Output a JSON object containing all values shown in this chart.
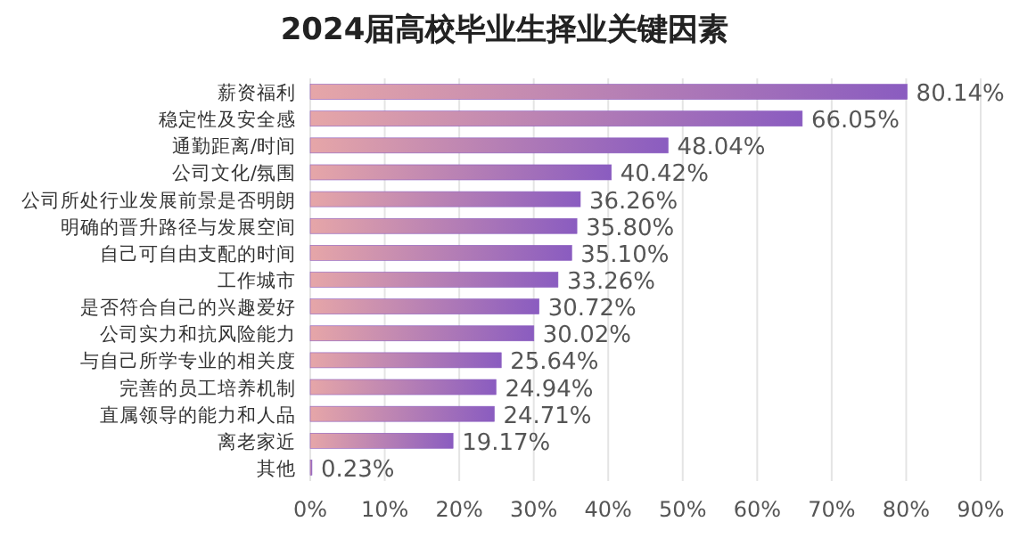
{
  "chart_data": {
    "type": "bar",
    "orientation": "horizontal",
    "title": "2024届高校毕业生择业关键因素",
    "categories": [
      "薪资福利",
      "稳定性及安全感",
      "通勤距离/时间",
      "公司文化/氛围",
      "公司所处行业发展前景是否明朗",
      "明确的晋升路径与发展空间",
      "自己可自由支配的时间",
      "工作城市",
      "是否符合自己的兴趣爱好",
      "公司实力和抗风险能力",
      "与自己所学专业的相关度",
      "完善的员工培养机制",
      "直属领导的能力和人品",
      "离老家近",
      "其他"
    ],
    "values": [
      80.14,
      66.05,
      48.04,
      40.42,
      36.26,
      35.8,
      35.1,
      33.26,
      30.72,
      30.02,
      25.64,
      24.94,
      24.71,
      19.17,
      0.23
    ],
    "value_labels": [
      "80.14%",
      "66.05%",
      "48.04%",
      "40.42%",
      "36.26%",
      "35.80%",
      "35.10%",
      "33.26%",
      "30.72%",
      "30.02%",
      "25.64%",
      "24.94%",
      "24.71%",
      "19.17%",
      "0.23%"
    ],
    "color": "#8a5cc0",
    "xlim": [
      0,
      90
    ],
    "xticks": [
      {
        "value": 0,
        "label": "0%"
      },
      {
        "value": 10,
        "label": "10%"
      },
      {
        "value": 20,
        "label": "20%"
      },
      {
        "value": 30,
        "label": "30%"
      },
      {
        "value": 40,
        "label": "40%"
      },
      {
        "value": 50,
        "label": "50%"
      },
      {
        "value": 60,
        "label": "60%"
      },
      {
        "value": 70,
        "label": "70%"
      },
      {
        "value": 80,
        "label": "80%"
      },
      {
        "value": 90,
        "label": "90%"
      }
    ],
    "grid": "x"
  }
}
